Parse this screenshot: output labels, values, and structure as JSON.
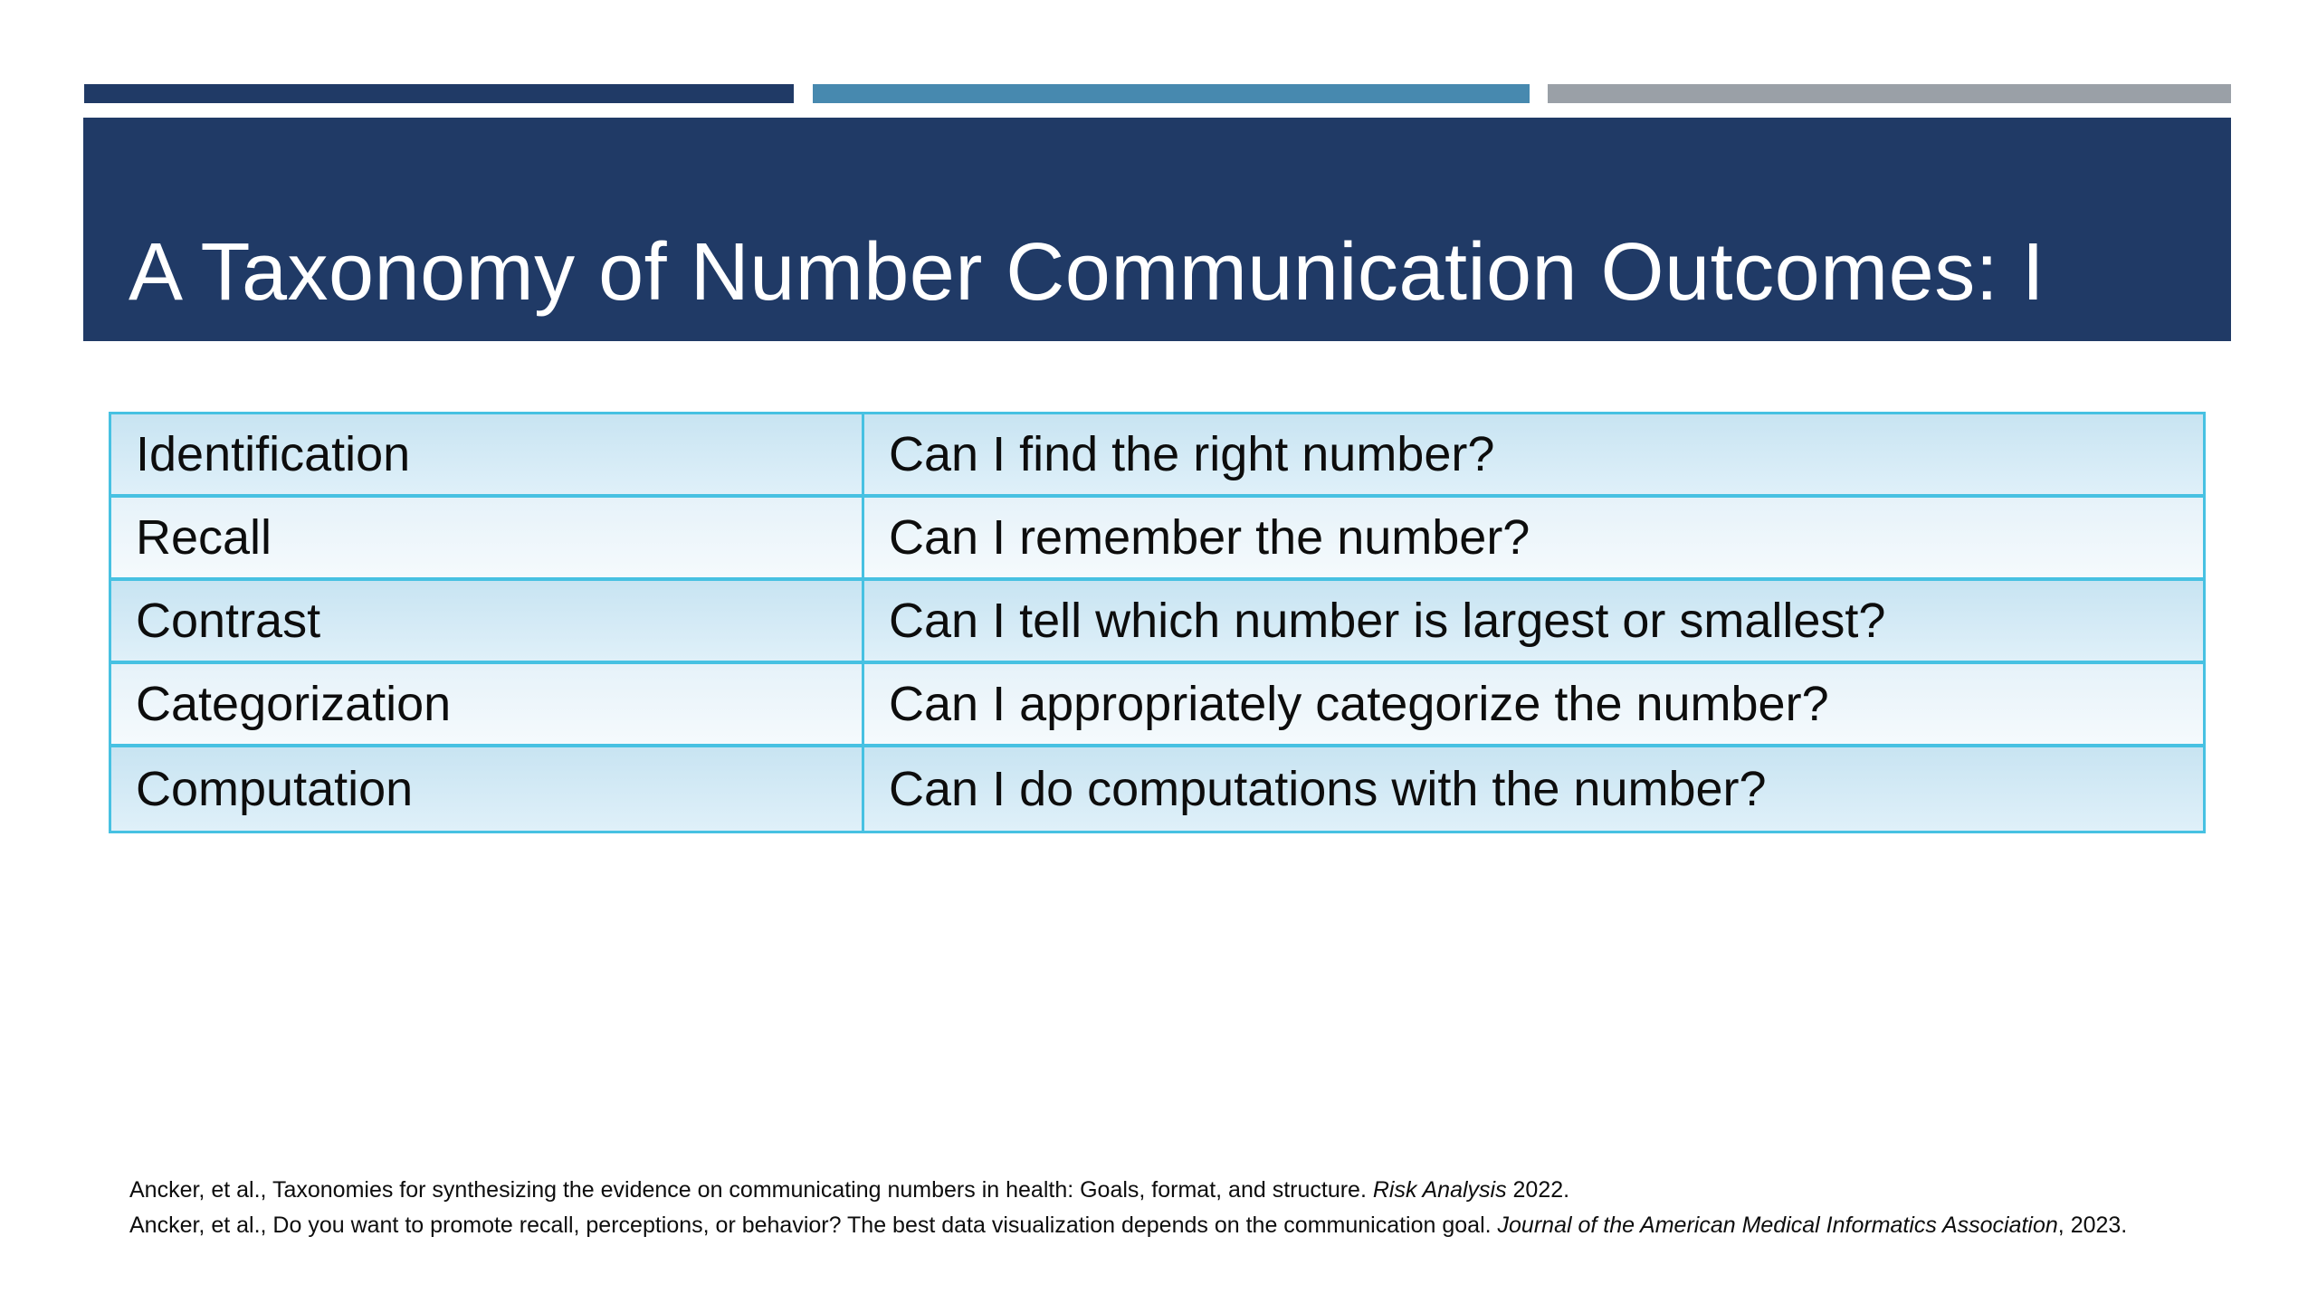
{
  "slide": {
    "title": "A Taxonomy of Number Communication Outcomes: I"
  },
  "colors": {
    "navy": "#203a66",
    "steel_blue": "#4789af",
    "gray": "#9aa0a7",
    "table_border": "#47c1e2",
    "row_odd_top": "#c8e4f2",
    "row_odd_bottom": "#dff0f9",
    "row_even_top": "#e6f2f9",
    "row_even_bottom": "#f5fafd",
    "title_text": "#ffffff",
    "text": "#0d0d0d"
  },
  "table": {
    "rows": [
      {
        "term": "Identification",
        "question": "Can I find the right number?"
      },
      {
        "term": "Recall",
        "question": "Can I remember the number?"
      },
      {
        "term": "Contrast",
        "question": "Can I tell which number is largest or smallest?"
      },
      {
        "term": "Categorization",
        "question": "Can I appropriately categorize the number?"
      },
      {
        "term": "Computation",
        "question": "Can I do computations with the number?"
      }
    ]
  },
  "footnotes": [
    {
      "segments": [
        {
          "text": "Ancker, et al., Taxonomies for synthesizing the evidence on communicating numbers in health: Goals, format, and structure. ",
          "italic": false
        },
        {
          "text": "Risk Analysis",
          "italic": true
        },
        {
          "text": " 2022.",
          "italic": false
        }
      ]
    },
    {
      "segments": [
        {
          "text": "Ancker, et al., Do you want to promote recall, perceptions, or behavior? The best data visualization depends on the communication goal. ",
          "italic": false
        },
        {
          "text": "Journal of the American Medical Informatics Association",
          "italic": true
        },
        {
          "text": ", 2023.",
          "italic": false
        }
      ]
    }
  ]
}
